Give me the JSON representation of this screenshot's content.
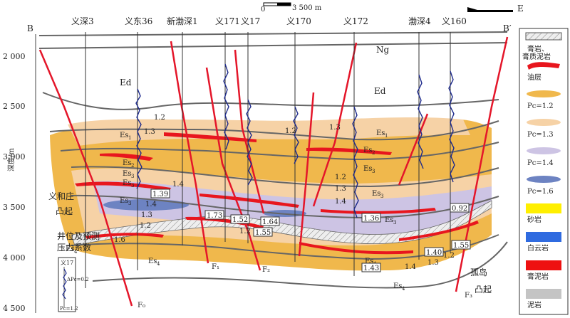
{
  "section": {
    "left_end": "B",
    "right_end": "B′",
    "direction": "E",
    "scale_zero": "0",
    "scale_len": "3 500 m"
  },
  "wells": [
    "义深3",
    "义东36",
    "新渤深1",
    "义171",
    "义17",
    "义170",
    "义172",
    "渤深4",
    "义160"
  ],
  "depth_axis": {
    "label": "深度/m",
    "ticks": [
      "2 000",
      "2 500",
      "3 000",
      "3 500",
      "4 000",
      "4 500"
    ]
  },
  "formations": {
    "ng": "Ng",
    "ed_left": "Ed",
    "ed_right": "Ed"
  },
  "faults": [
    "F₀",
    "F₁",
    "F₂",
    "F₃"
  ],
  "pc_values": [
    "1.2",
    "1.3",
    "1.39",
    "1.4",
    "1.3",
    "1.2",
    "1.4",
    "1.6",
    "1.73",
    "1.52",
    "1.64",
    "1.55",
    "1.2",
    "1.2",
    "1.3",
    "1.2",
    "1.3",
    "1.4",
    "1.36",
    "0.92",
    "1.40",
    "1.55",
    "1.43",
    "1.4",
    "1.3",
    "1.2"
  ],
  "annotations": {
    "uplift_left_1": "义和庄",
    "uplift_left_2": "凸起",
    "uplift_right_1": "孤岛",
    "uplift_right_2": "凸起",
    "inset_title_1": "井位及预测",
    "inset_title_2": "压力系数",
    "inset_well": "义17",
    "inset_dpc": "ΔPc=0.2",
    "inset_pc": "Pc=1.2"
  },
  "legend": [
    {
      "label_1": "膏岩、",
      "label_2": "膏质泥岩",
      "color": "#d9d9d9",
      "kind": "hatch"
    },
    {
      "label_1": "油层",
      "label_2": "",
      "color": "#e8161e",
      "kind": "blob"
    },
    {
      "label_1": "Pc=1.2",
      "label_2": "",
      "color": "#f0b84c",
      "kind": "ellipse"
    },
    {
      "label_1": "Pc=1.3",
      "label_2": "",
      "color": "#f6d2a6",
      "kind": "ellipse"
    },
    {
      "label_1": "Pc=1.4",
      "label_2": "",
      "color": "#cdc4e4",
      "kind": "ellipse"
    },
    {
      "label_1": "Pc=1.6",
      "label_2": "",
      "color": "#6d83c2",
      "kind": "ellipse"
    },
    {
      "label_1": "砂岩",
      "label_2": "",
      "color": "#ffef00",
      "kind": "rect"
    },
    {
      "label_1": "白云岩",
      "label_2": "",
      "color": "#2f6be0",
      "kind": "rect"
    },
    {
      "label_1": "膏泥岩",
      "label_2": "",
      "color": "#ee1111",
      "kind": "rect"
    },
    {
      "label_1": "泥岩",
      "label_2": "",
      "color": "#c4c4c4",
      "kind": "rect"
    }
  ]
}
